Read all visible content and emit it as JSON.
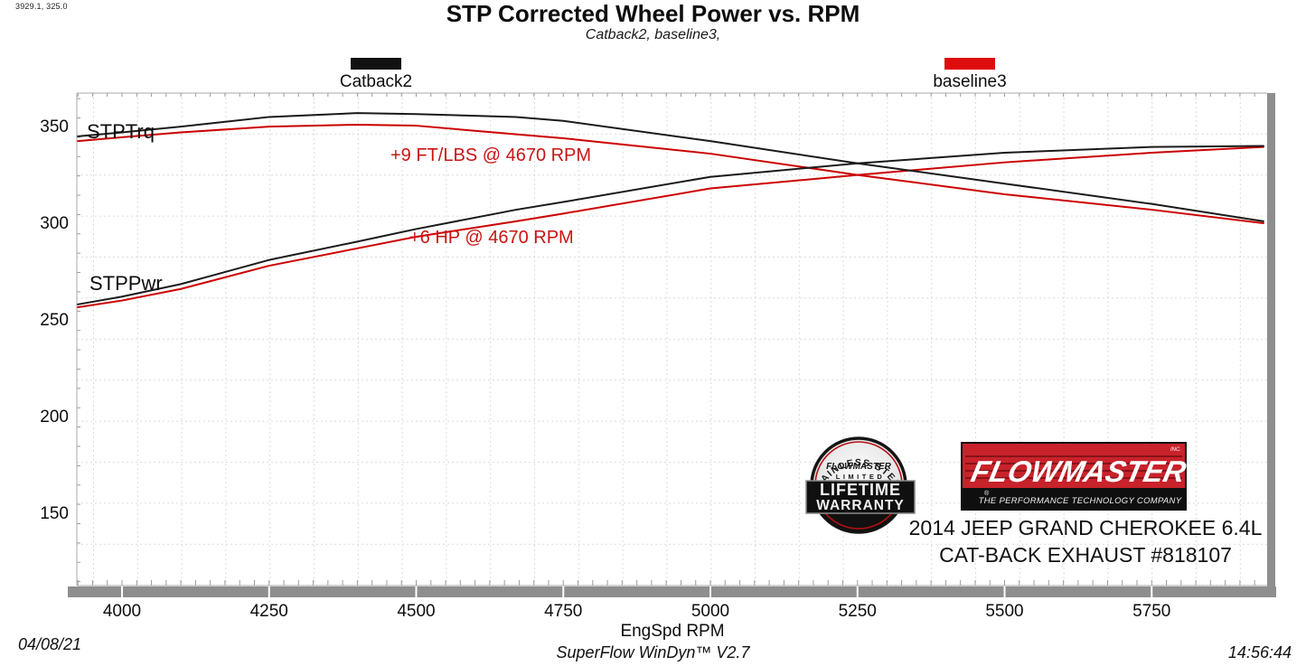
{
  "header": {
    "readout": "3929.1, 325.0",
    "title": "STP Corrected Wheel Power vs. RPM",
    "subtitle": "Catback2, baseline3,"
  },
  "legend": {
    "catback": {
      "label": "Catback2",
      "color": "#111111"
    },
    "baseline": {
      "label": "baseline3",
      "color": "#dd0d0d"
    }
  },
  "chart_data": {
    "type": "line",
    "title": "STP Corrected Wheel Power vs. RPM",
    "xlabel": "EngSpd  RPM",
    "ylabel": "",
    "grid": true,
    "legend_position": "top",
    "xlim": [
      3923,
      5950
    ],
    "ylim": [
      113,
      368
    ],
    "xticks": [
      4000,
      4250,
      4500,
      4750,
      5000,
      5250,
      5500,
      5750
    ],
    "yticks": [
      150,
      200,
      250,
      300,
      350
    ],
    "x": [
      3925,
      4000,
      4100,
      4250,
      4400,
      4500,
      4670,
      4750,
      5000,
      5250,
      5500,
      5750,
      5940
    ],
    "series": [
      {
        "name": "baseline3 STPTrq",
        "color": "#cc0000",
        "values": [
          343,
          345,
          347.5,
          350.5,
          351.5,
          351,
          346.5,
          344.5,
          336.5,
          325.5,
          315.5,
          307.5,
          300.5
        ]
      },
      {
        "name": "baseline3 STPPwr",
        "color": "#cc0000",
        "values": [
          257,
          260.5,
          266.5,
          278.5,
          287.5,
          293.5,
          301.5,
          305.5,
          318.5,
          325.5,
          332,
          337,
          340
        ]
      },
      {
        "name": "Catback2 STPTrq",
        "color": "#1a1a1a",
        "values": [
          345.5,
          347.5,
          350.5,
          355.5,
          357.5,
          357,
          355.5,
          353.5,
          343,
          331.5,
          321,
          310.5,
          301.5
        ]
      },
      {
        "name": "Catback2 STPPwr",
        "color": "#1a1a1a",
        "values": [
          258.5,
          262.5,
          269,
          281.5,
          291,
          297.5,
          307.5,
          311.5,
          324.5,
          331.5,
          337,
          340,
          340.5
        ]
      }
    ],
    "curve_labels": [
      {
        "text": "STPTrq",
        "x": 96,
        "y": 133
      },
      {
        "text": "STPPwr",
        "x": 99,
        "y": 301
      }
    ],
    "annotations": [
      {
        "text": "+9 FT/LBS @ 4670 RPM",
        "x": 432,
        "y": 161
      },
      {
        "text": "+6 HP @ 4670 RPM",
        "x": 453,
        "y": 252
      }
    ]
  },
  "axis": {
    "xlabel": "EngSpd  RPM"
  },
  "branding": {
    "badge": {
      "arc_text": "STAINLESS STEEL",
      "brand": "FLOWMASTER",
      "limited": "LIMITED",
      "line1": "LIFETIME",
      "line2": "WARRANTY"
    },
    "logo": {
      "name": "FLOWMASTER",
      "inc": "INC.",
      "reg": "®",
      "tagline": "THE PERFORMANCE TECHNOLOGY COMPANY",
      "red": "#c8222b"
    },
    "vehicle_line1": "2014 JEEP GRAND CHEROKEE 6.4L",
    "vehicle_line2": "CAT-BACK EXHAUST #818107"
  },
  "footer": {
    "date": "04/08/21",
    "software": "SuperFlow WinDyn™ V2.7",
    "time": "14:56:44"
  }
}
